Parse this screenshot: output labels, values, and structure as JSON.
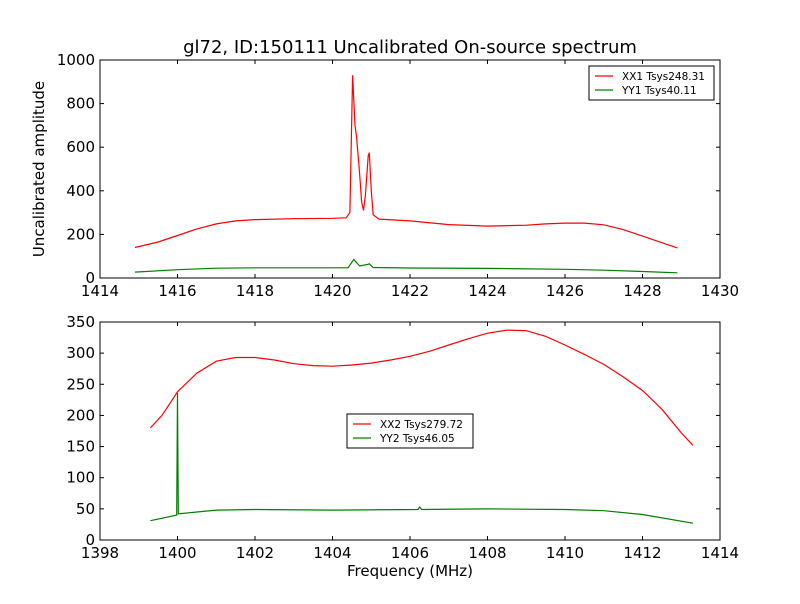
{
  "chart_data": [
    {
      "type": "line",
      "title": "gl72, ID:150111 Uncalibrated On-source spectrum",
      "xlabel": "",
      "ylabel": "Uncalibrated amplitude",
      "xlim": [
        1414,
        1430
      ],
      "ylim": [
        0,
        1000
      ],
      "xticks": [
        1414,
        1416,
        1418,
        1420,
        1422,
        1424,
        1426,
        1428,
        1430
      ],
      "yticks": [
        0,
        200,
        400,
        600,
        800,
        1000
      ],
      "legend_position": "top-right",
      "series": [
        {
          "name": "XX1 Tsys248.31",
          "color": "#ff0000",
          "x": [
            1414.9,
            1415.5,
            1416,
            1416.5,
            1417,
            1417.5,
            1418,
            1419,
            1420,
            1420.35,
            1420.45,
            1420.52,
            1420.58,
            1420.62,
            1420.7,
            1420.75,
            1420.8,
            1420.85,
            1420.92,
            1420.95,
            1421.0,
            1421.05,
            1421.2,
            1422,
            1423,
            1424,
            1425,
            1425.5,
            1426,
            1426.5,
            1427,
            1427.5,
            1428,
            1428.5,
            1428.9
          ],
          "y": [
            140,
            165,
            195,
            225,
            248,
            262,
            268,
            272,
            274,
            276,
            300,
            930,
            700,
            650,
            480,
            350,
            310,
            380,
            560,
            575,
            400,
            290,
            270,
            262,
            245,
            238,
            242,
            248,
            252,
            252,
            244,
            222,
            192,
            162,
            138
          ]
        },
        {
          "name": "YY1 Tsys40.11",
          "color": "#008000",
          "x": [
            1414.9,
            1416,
            1417,
            1418,
            1420.4,
            1420.55,
            1420.7,
            1420.9,
            1420.95,
            1421.05,
            1422,
            1424,
            1426,
            1427,
            1428,
            1428.9
          ],
          "y": [
            27,
            38,
            45,
            47,
            47,
            85,
            55,
            62,
            65,
            48,
            46,
            44,
            40,
            36,
            30,
            24
          ]
        }
      ]
    },
    {
      "type": "line",
      "title": "",
      "xlabel": "Frequency (MHz)",
      "ylabel": "",
      "xlim": [
        1398,
        1414
      ],
      "ylim": [
        0,
        350
      ],
      "xticks": [
        1398,
        1400,
        1402,
        1404,
        1406,
        1408,
        1410,
        1412,
        1414
      ],
      "yticks": [
        0,
        50,
        100,
        150,
        200,
        250,
        300,
        350
      ],
      "legend_position": "center",
      "series": [
        {
          "name": "XX2 Tsys279.72",
          "color": "#ff0000",
          "x": [
            1399.3,
            1399.6,
            1400,
            1400.5,
            1401,
            1401.5,
            1402,
            1402.5,
            1403,
            1403.5,
            1404,
            1404.5,
            1405,
            1405.5,
            1406,
            1406.5,
            1407,
            1407.5,
            1408,
            1408.5,
            1409,
            1409.5,
            1410,
            1410.5,
            1411,
            1411.5,
            1412,
            1412.5,
            1413,
            1413.3
          ],
          "y": [
            180,
            200,
            238,
            268,
            287,
            293,
            293,
            289,
            283,
            280,
            279,
            281,
            284,
            289,
            295,
            303,
            313,
            323,
            332,
            337,
            336,
            327,
            313,
            298,
            282,
            262,
            240,
            210,
            172,
            152
          ]
        },
        {
          "name": "YY2 Tsys46.05",
          "color": "#008000",
          "x": [
            1399.3,
            1399.98,
            1400.0,
            1400.02,
            1400.5,
            1401,
            1402,
            1404,
            1406.2,
            1406.25,
            1406.3,
            1408,
            1410,
            1411,
            1412,
            1413.3
          ],
          "y": [
            31,
            40,
            236,
            42,
            45,
            48,
            49,
            48,
            49,
            53,
            49,
            50,
            49,
            47,
            41,
            27
          ]
        }
      ]
    }
  ]
}
